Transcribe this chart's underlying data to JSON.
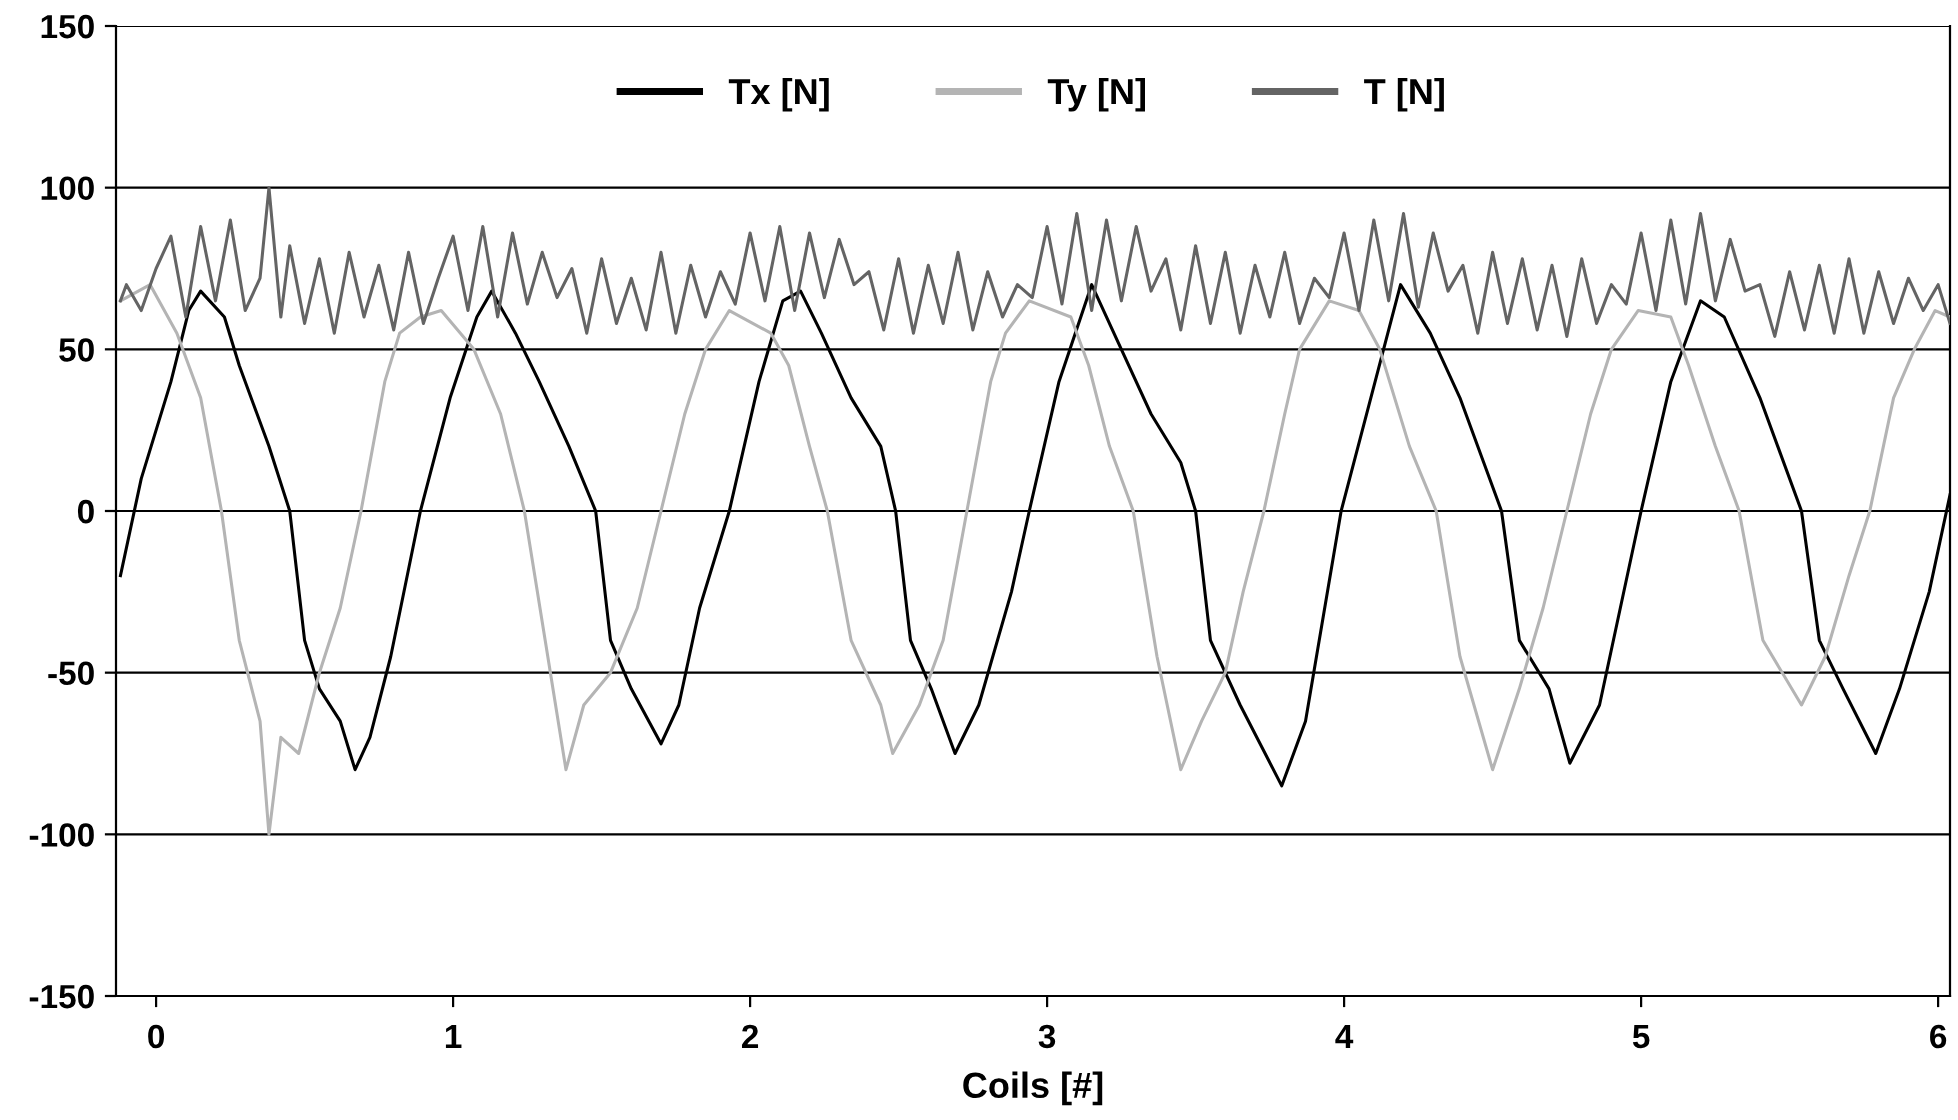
{
  "chart_data": {
    "type": "line",
    "xlabel": "Coils [#]",
    "xlim": [
      -0.135,
      6.04
    ],
    "xticks": [
      0,
      1,
      2,
      3,
      4,
      5,
      6
    ],
    "ylim": [
      -150,
      150
    ],
    "yticks": [
      -150,
      -100,
      -50,
      0,
      50,
      100,
      150
    ],
    "grid": "y",
    "legend": "top",
    "marker": "none",
    "line_style": "solid",
    "series": [
      {
        "name": "Tx [N]",
        "color": "#000000",
        "x": [
          -0.12,
          -0.05,
          0.05,
          0.11,
          0.15,
          0.23,
          0.28,
          0.38,
          0.45,
          0.5,
          0.55,
          0.62,
          0.67,
          0.72,
          0.79,
          0.89,
          0.99,
          1.08,
          1.13,
          1.21,
          1.29,
          1.39,
          1.48,
          1.53,
          1.6,
          1.7,
          1.76,
          1.83,
          1.93,
          2.03,
          2.11,
          2.17,
          2.24,
          2.34,
          2.44,
          2.49,
          2.54,
          2.61,
          2.69,
          2.77,
          2.88,
          2.94,
          3.04,
          3.15,
          3.25,
          3.35,
          3.45,
          3.5,
          3.55,
          3.65,
          3.79,
          3.87,
          3.99,
          4.09,
          4.19,
          4.29,
          4.39,
          4.47,
          4.53,
          4.59,
          4.69,
          4.76,
          4.86,
          5.0,
          5.1,
          5.2,
          5.28,
          5.4,
          5.54,
          5.6,
          5.68,
          5.79,
          5.87,
          5.97,
          6.04
        ],
        "values": [
          -20,
          10,
          40,
          62,
          68,
          60,
          45,
          20,
          0,
          -40,
          -55,
          -65,
          -80,
          -70,
          -45,
          0,
          35,
          60,
          68,
          55,
          40,
          20,
          0,
          -40,
          -55,
          -72,
          -60,
          -30,
          0,
          40,
          65,
          68,
          55,
          35,
          20,
          0,
          -40,
          -55,
          -75,
          -60,
          -25,
          0,
          40,
          70,
          50,
          30,
          15,
          0,
          -40,
          -60,
          -85,
          -65,
          0,
          35,
          70,
          55,
          35,
          15,
          0,
          -40,
          -55,
          -78,
          -60,
          0,
          40,
          65,
          60,
          35,
          0,
          -40,
          -55,
          -75,
          -55,
          -25,
          5
        ]
      },
      {
        "name": "Ty [N]",
        "color": "#b4b4b4",
        "x": [
          -0.12,
          -0.02,
          0.07,
          0.15,
          0.22,
          0.28,
          0.35,
          0.38,
          0.42,
          0.48,
          0.55,
          0.62,
          0.69,
          0.77,
          0.82,
          0.89,
          0.96,
          1.07,
          1.16,
          1.24,
          1.31,
          1.38,
          1.44,
          1.53,
          1.62,
          1.7,
          1.78,
          1.85,
          1.93,
          2.07,
          2.13,
          2.2,
          2.26,
          2.34,
          2.44,
          2.48,
          2.57,
          2.65,
          2.73,
          2.81,
          2.86,
          2.94,
          3.08,
          3.14,
          3.21,
          3.29,
          3.37,
          3.45,
          3.52,
          3.6,
          3.66,
          3.73,
          3.8,
          3.85,
          3.95,
          4.05,
          4.12,
          4.22,
          4.31,
          4.39,
          4.5,
          4.59,
          4.67,
          4.75,
          4.83,
          4.9,
          4.99,
          5.1,
          5.16,
          5.25,
          5.33,
          5.41,
          5.54,
          5.62,
          5.7,
          5.77,
          5.85,
          5.92,
          5.99,
          6.04
        ],
        "values": [
          65,
          70,
          55,
          35,
          0,
          -40,
          -65,
          -100,
          -70,
          -75,
          -50,
          -30,
          0,
          40,
          55,
          60,
          62,
          50,
          30,
          0,
          -40,
          -80,
          -60,
          -50,
          -30,
          0,
          30,
          50,
          62,
          55,
          45,
          20,
          0,
          -40,
          -60,
          -75,
          -60,
          -40,
          0,
          40,
          55,
          65,
          60,
          45,
          20,
          0,
          -45,
          -80,
          -65,
          -50,
          -25,
          0,
          30,
          50,
          65,
          62,
          50,
          20,
          0,
          -45,
          -80,
          -55,
          -30,
          0,
          30,
          50,
          62,
          60,
          45,
          20,
          0,
          -40,
          -60,
          -45,
          -20,
          0,
          35,
          50,
          62,
          60
        ]
      },
      {
        "name": "T [N]",
        "color": "#646464",
        "x": [
          -0.12,
          -0.1,
          -0.05,
          0,
          0.05,
          0.1,
          0.15,
          0.2,
          0.25,
          0.3,
          0.35,
          0.38,
          0.42,
          0.45,
          0.5,
          0.55,
          0.6,
          0.65,
          0.7,
          0.75,
          0.8,
          0.85,
          0.9,
          0.95,
          1,
          1.05,
          1.1,
          1.15,
          1.2,
          1.25,
          1.3,
          1.35,
          1.4,
          1.45,
          1.5,
          1.55,
          1.6,
          1.65,
          1.7,
          1.75,
          1.8,
          1.85,
          1.9,
          1.95,
          2,
          2.05,
          2.1,
          2.15,
          2.2,
          2.25,
          2.3,
          2.35,
          2.4,
          2.45,
          2.5,
          2.55,
          2.6,
          2.65,
          2.7,
          2.75,
          2.8,
          2.85,
          2.9,
          2.95,
          3,
          3.05,
          3.1,
          3.15,
          3.2,
          3.25,
          3.3,
          3.35,
          3.4,
          3.45,
          3.5,
          3.55,
          3.6,
          3.65,
          3.7,
          3.75,
          3.8,
          3.85,
          3.9,
          3.95,
          4,
          4.05,
          4.1,
          4.15,
          4.2,
          4.25,
          4.3,
          4.35,
          4.4,
          4.45,
          4.5,
          4.55,
          4.6,
          4.65,
          4.7,
          4.75,
          4.8,
          4.85,
          4.9,
          4.95,
          5,
          5.05,
          5.1,
          5.15,
          5.2,
          5.25,
          5.3,
          5.35,
          5.4,
          5.45,
          5.5,
          5.55,
          5.6,
          5.65,
          5.7,
          5.75,
          5.8,
          5.85,
          5.9,
          5.95,
          6,
          6.04
        ],
        "values": [
          65,
          70,
          62,
          75,
          85,
          60,
          88,
          65,
          90,
          62,
          72,
          100,
          60,
          82,
          58,
          78,
          55,
          80,
          60,
          76,
          56,
          80,
          58,
          72,
          85,
          62,
          88,
          60,
          86,
          64,
          80,
          66,
          75,
          55,
          78,
          58,
          72,
          56,
          80,
          55,
          76,
          60,
          74,
          64,
          86,
          65,
          88,
          62,
          86,
          66,
          84,
          70,
          74,
          56,
          78,
          55,
          76,
          58,
          80,
          56,
          74,
          60,
          70,
          66,
          88,
          64,
          92,
          62,
          90,
          65,
          88,
          68,
          78,
          56,
          82,
          58,
          80,
          55,
          76,
          60,
          80,
          58,
          72,
          66,
          86,
          62,
          90,
          65,
          92,
          63,
          86,
          68,
          76,
          55,
          80,
          58,
          78,
          56,
          76,
          54,
          78,
          58,
          70,
          64,
          86,
          62,
          90,
          64,
          92,
          65,
          84,
          68,
          70,
          54,
          74,
          56,
          76,
          55,
          78,
          55,
          74,
          58,
          72,
          62,
          70,
          58
        ]
      }
    ]
  }
}
